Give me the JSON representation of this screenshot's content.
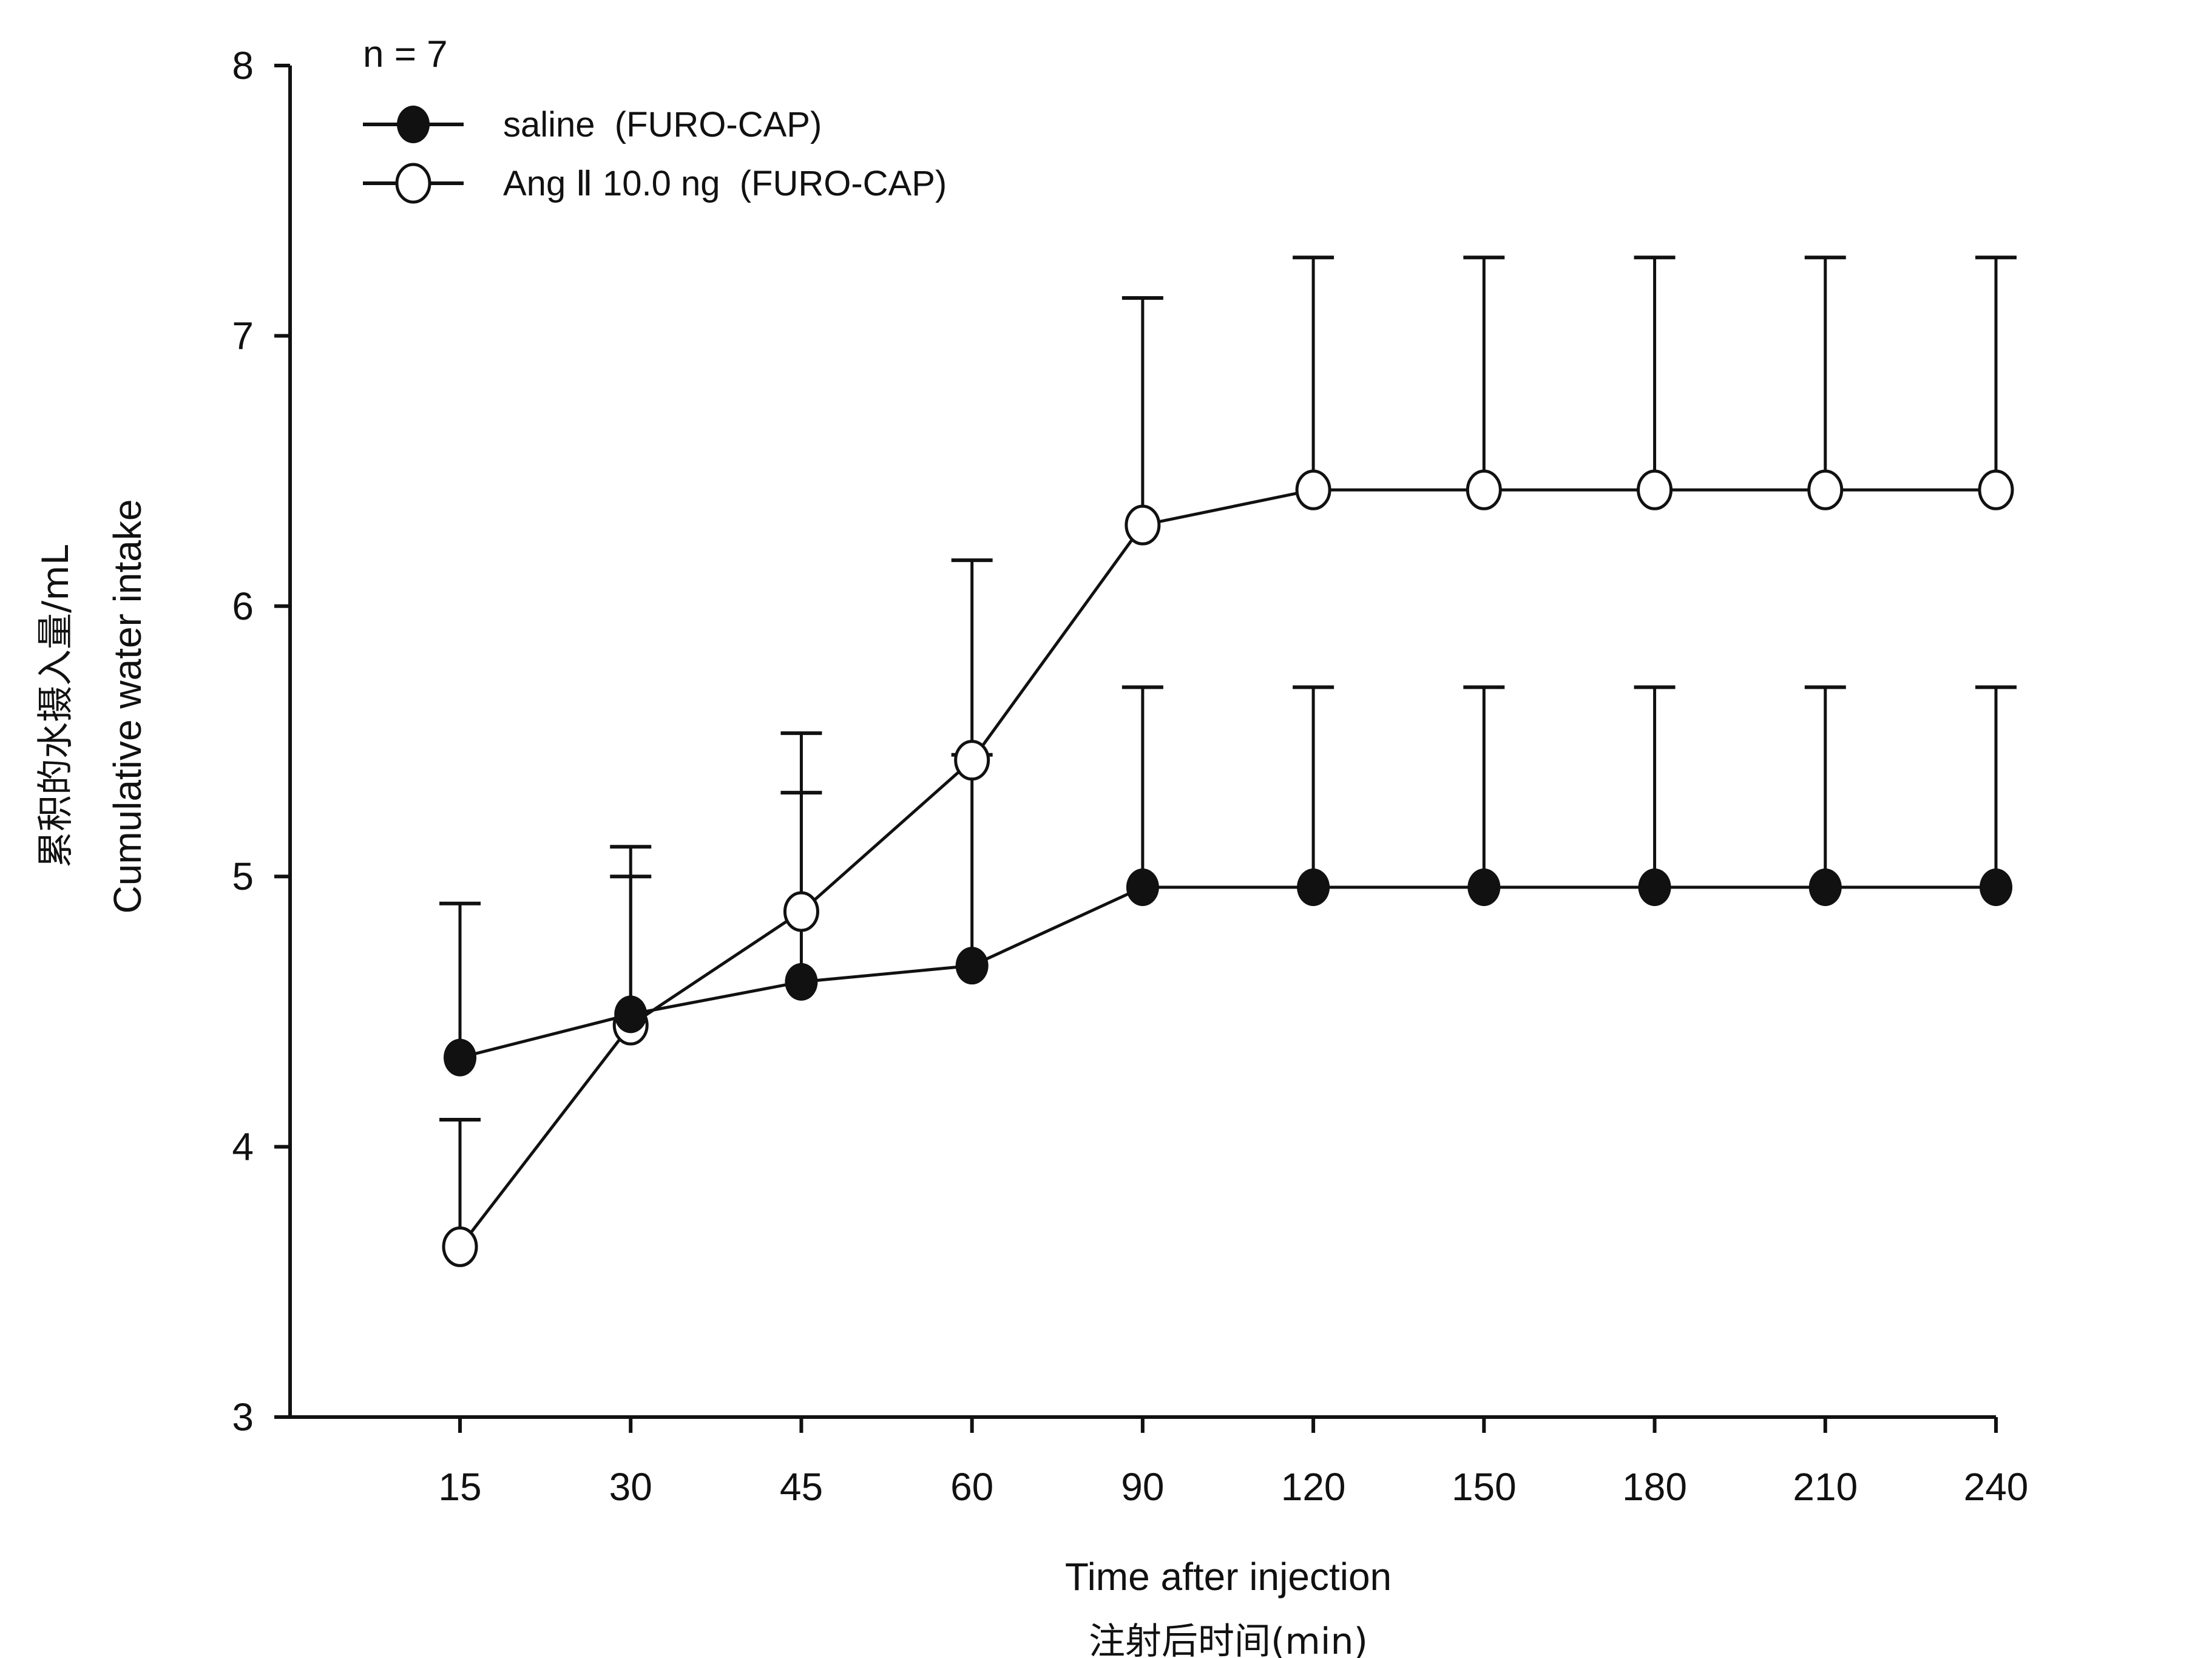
{
  "chart_data": {
    "type": "line",
    "title": "",
    "annotation": "n = 7",
    "xlabel": [
      "Time after injection",
      "注射后时间(min)"
    ],
    "ylabel": [
      "累积的水摄入量/mL",
      "Cumulative water intake"
    ],
    "categories": [
      "15",
      "30",
      "45",
      "60",
      "90",
      "120",
      "150",
      "180",
      "210",
      "240"
    ],
    "ylim": [
      3,
      8
    ],
    "yticks": [
      "3",
      "4",
      "5",
      "6",
      "7",
      "8"
    ],
    "grid": false,
    "legend_position": "top-left",
    "series": [
      {
        "name": "saline  (FURO-CAP)",
        "marker": "filled-circle",
        "values": [
          4.33,
          4.49,
          4.61,
          4.67,
          4.96,
          4.96,
          4.96,
          4.96,
          4.96,
          4.96
        ],
        "error_upper": [
          4.9,
          5.0,
          5.31,
          5.45,
          5.7,
          5.7,
          5.7,
          5.7,
          5.7,
          5.7
        ]
      },
      {
        "name": "Ang Ⅱ 10.0 ng  (FURO-CAP)",
        "marker": "open-circle",
        "values": [
          3.63,
          4.45,
          4.87,
          5.43,
          6.3,
          6.43,
          6.43,
          6.43,
          6.43,
          6.43
        ],
        "error_upper": [
          4.1,
          5.11,
          5.53,
          6.17,
          7.14,
          7.29,
          7.29,
          7.29,
          7.29,
          7.29
        ]
      }
    ],
    "colors": {
      "line": "#111111",
      "open_fill": "#ffffff"
    }
  }
}
